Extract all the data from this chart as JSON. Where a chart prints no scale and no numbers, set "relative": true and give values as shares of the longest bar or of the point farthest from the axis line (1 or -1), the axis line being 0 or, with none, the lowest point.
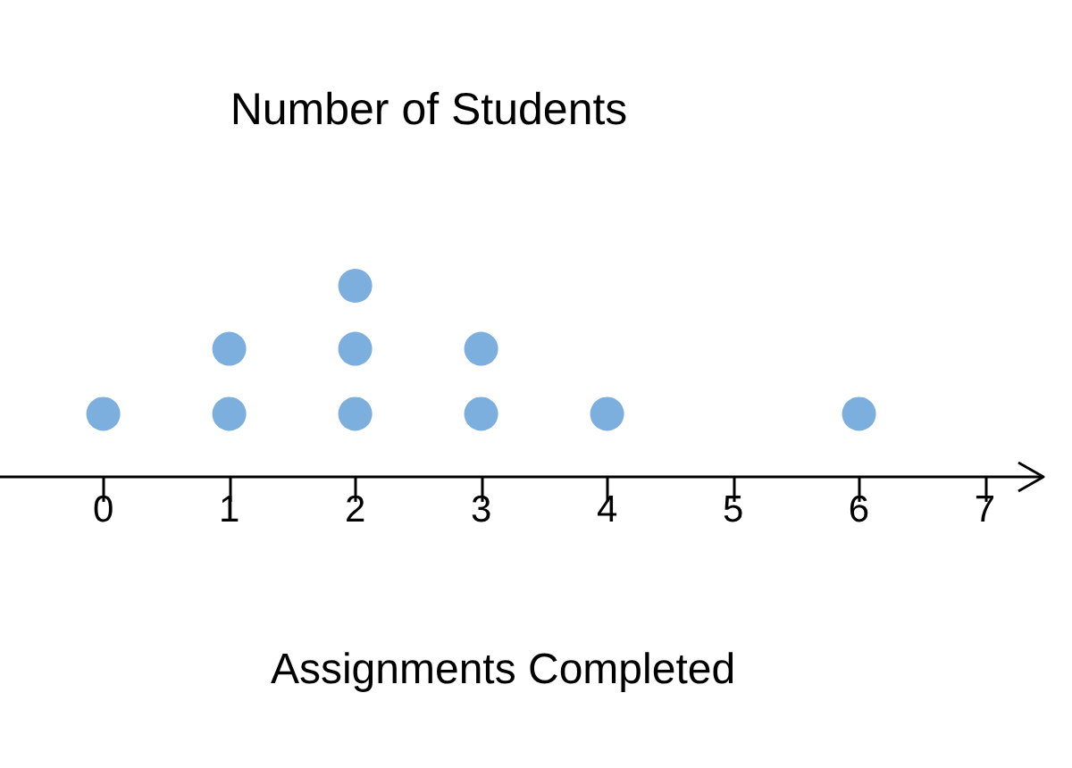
{
  "chart_data": {
    "type": "scatter",
    "title": "Number of Students",
    "xlabel": "Assignments Completed",
    "x": [
      0,
      1,
      1,
      2,
      2,
      2,
      3,
      3,
      4,
      6
    ],
    "values": [
      0.33,
      0.33,
      0.67,
      0.33,
      0.67,
      1,
      0.33,
      0.67,
      0.33,
      0.33
    ],
    "relative": true,
    "color": "#5b9bd5",
    "marker": "circle",
    "xlim": [
      -0.82,
      7.45
    ],
    "xticks": [
      0,
      1,
      2,
      3,
      4,
      5,
      6,
      7
    ],
    "tick_labels": "x",
    "grid": false
  }
}
